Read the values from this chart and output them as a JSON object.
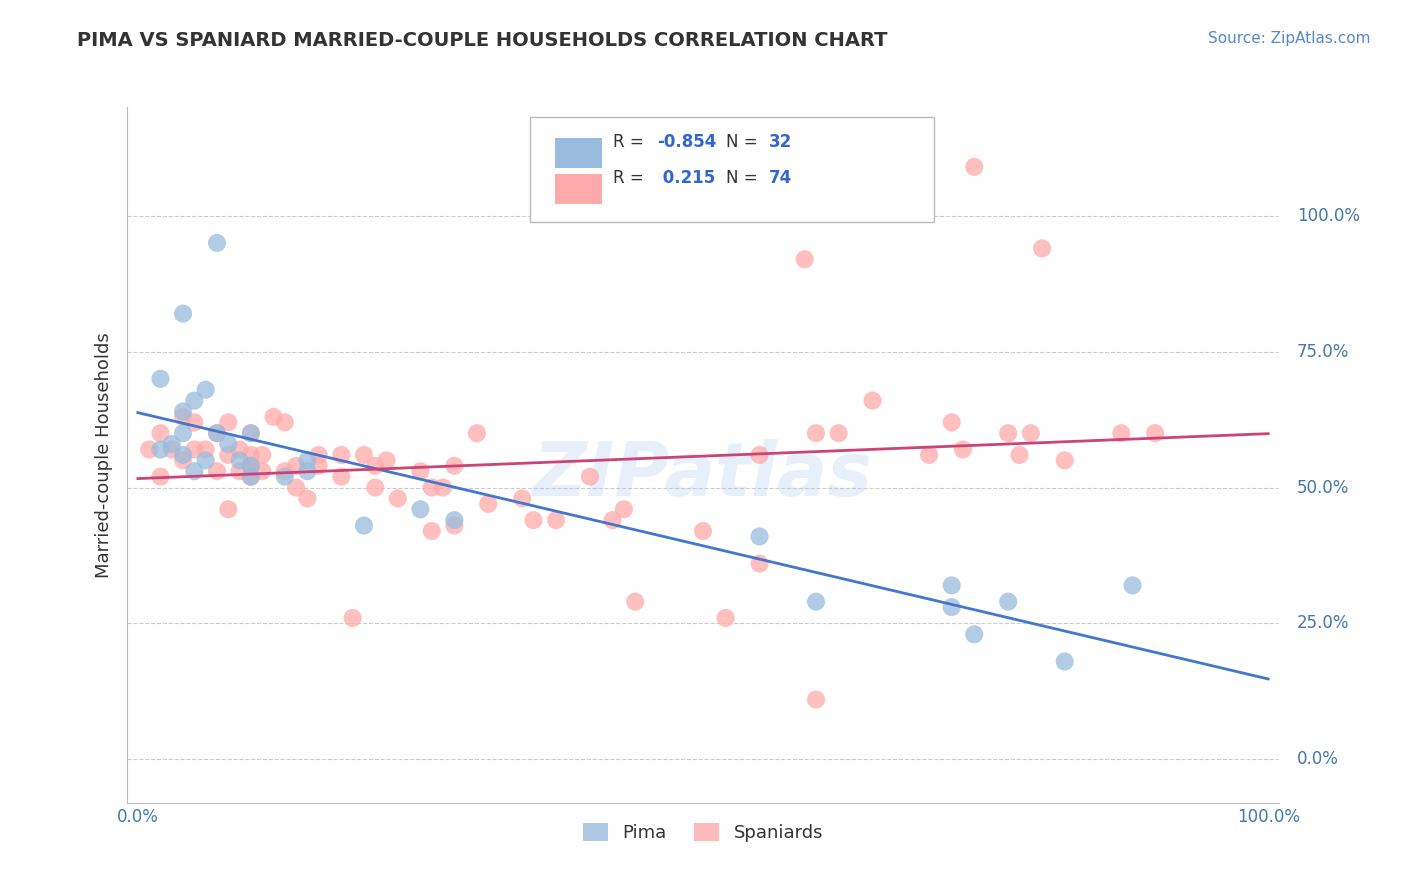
{
  "title": "PIMA VS SPANIARD MARRIED-COUPLE HOUSEHOLDS CORRELATION CHART",
  "source_text": "Source: ZipAtlas.com",
  "ylabel": "Married-couple Households",
  "xlim": [
    0,
    1
  ],
  "ylim": [
    -0.05,
    1.15
  ],
  "pima_color": "#99bbdd",
  "spaniard_color": "#ffaaaa",
  "pima_line_color": "#4477cc",
  "spaniard_line_color": "#cc4477",
  "legend_R_pima": "-0.854",
  "legend_N_pima": "32",
  "legend_R_spaniard": "0.215",
  "legend_N_spaniard": "74",
  "watermark_text": "ZIPatlas",
  "background_color": "#ffffff",
  "grid_color": "#cccccc",
  "ytick_positions": [
    0.0,
    0.25,
    0.5,
    0.75,
    1.0
  ],
  "ytick_labels": [
    "0.0%",
    "25.0%",
    "50.0%",
    "75.0%",
    "100.0%"
  ],
  "pima_x": [
    0.02,
    0.02,
    0.03,
    0.04,
    0.04,
    0.04,
    0.05,
    0.05,
    0.06,
    0.06,
    0.07,
    0.07,
    0.08,
    0.09,
    0.1,
    0.1,
    0.1,
    0.13,
    0.15,
    0.15,
    0.2,
    0.25,
    0.28,
    0.55,
    0.6,
    0.72,
    0.72,
    0.74,
    0.77,
    0.82,
    0.88,
    0.04
  ],
  "pima_y": [
    0.7,
    0.57,
    0.58,
    0.56,
    0.6,
    0.64,
    0.53,
    0.66,
    0.55,
    0.68,
    0.6,
    0.95,
    0.58,
    0.55,
    0.54,
    0.6,
    0.52,
    0.52,
    0.53,
    0.55,
    0.43,
    0.46,
    0.44,
    0.41,
    0.29,
    0.28,
    0.32,
    0.23,
    0.29,
    0.18,
    0.32,
    0.82
  ],
  "spaniard_x": [
    0.01,
    0.02,
    0.02,
    0.03,
    0.04,
    0.04,
    0.05,
    0.05,
    0.06,
    0.07,
    0.07,
    0.08,
    0.08,
    0.08,
    0.09,
    0.09,
    0.1,
    0.1,
    0.1,
    0.1,
    0.1,
    0.11,
    0.11,
    0.12,
    0.13,
    0.13,
    0.14,
    0.14,
    0.15,
    0.16,
    0.16,
    0.18,
    0.18,
    0.19,
    0.2,
    0.21,
    0.21,
    0.22,
    0.23,
    0.25,
    0.26,
    0.26,
    0.27,
    0.28,
    0.28,
    0.3,
    0.31,
    0.34,
    0.35,
    0.37,
    0.4,
    0.42,
    0.43,
    0.44,
    0.5,
    0.52,
    0.55,
    0.55,
    0.59,
    0.6,
    0.6,
    0.62,
    0.65,
    0.7,
    0.72,
    0.73,
    0.74,
    0.77,
    0.78,
    0.79,
    0.8,
    0.82,
    0.87,
    0.9
  ],
  "spaniard_y": [
    0.57,
    0.6,
    0.52,
    0.57,
    0.55,
    0.63,
    0.57,
    0.62,
    0.57,
    0.6,
    0.53,
    0.56,
    0.62,
    0.46,
    0.57,
    0.53,
    0.56,
    0.54,
    0.6,
    0.54,
    0.52,
    0.56,
    0.53,
    0.63,
    0.62,
    0.53,
    0.5,
    0.54,
    0.48,
    0.56,
    0.54,
    0.56,
    0.52,
    0.26,
    0.56,
    0.54,
    0.5,
    0.55,
    0.48,
    0.53,
    0.5,
    0.42,
    0.5,
    0.43,
    0.54,
    0.6,
    0.47,
    0.48,
    0.44,
    0.44,
    0.52,
    0.44,
    0.46,
    0.29,
    0.42,
    0.26,
    0.56,
    0.36,
    0.92,
    0.6,
    0.11,
    0.6,
    0.66,
    0.56,
    0.62,
    0.57,
    1.09,
    0.6,
    0.56,
    0.6,
    0.94,
    0.55,
    0.6,
    0.6
  ]
}
